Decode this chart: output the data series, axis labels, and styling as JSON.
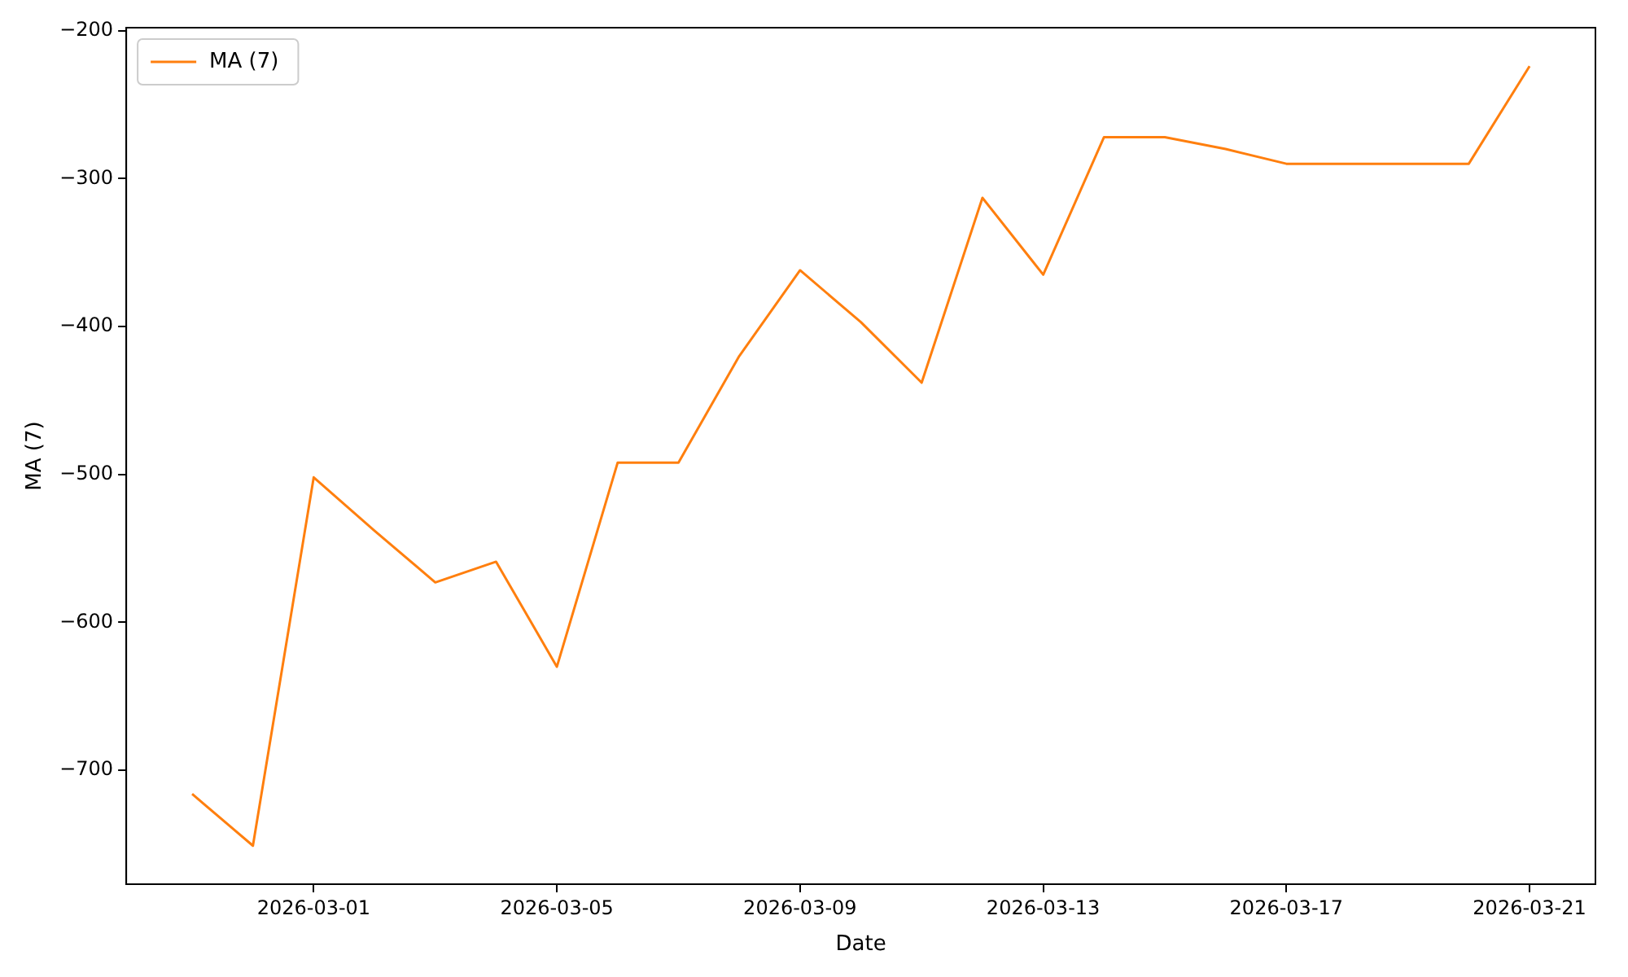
{
  "chart_data": {
    "type": "line",
    "xlabel": "Date",
    "ylabel": "MA (7)",
    "x": [
      "2026-02-27",
      "2026-02-28",
      "2026-03-01",
      "2026-03-02",
      "2026-03-03",
      "2026-03-04",
      "2026-03-05",
      "2026-03-06",
      "2026-03-07",
      "2026-03-08",
      "2026-03-09",
      "2026-03-10",
      "2026-03-11",
      "2026-03-12",
      "2026-03-13",
      "2026-03-14",
      "2026-03-15",
      "2026-03-16",
      "2026-03-17",
      "2026-03-18",
      "2026-03-19",
      "2026-03-20",
      "2026-03-21"
    ],
    "series": [
      {
        "name": "MA (7)",
        "color": "#ff7f0e",
        "values": [
          -716,
          -751,
          -502,
          -538,
          -573,
          -559,
          -630,
          -492,
          -492,
          -420,
          -362,
          -397,
          -438,
          -313,
          -365,
          -272,
          -272,
          -280,
          -290,
          -290,
          -290,
          -290,
          -224
        ]
      }
    ],
    "xlim": [
      "2026-02-25T22:00",
      "2026-03-22T02:00"
    ],
    "xticks": [
      "2026-03-01",
      "2026-03-05",
      "2026-03-09",
      "2026-03-13",
      "2026-03-17",
      "2026-03-21"
    ],
    "ylim": [
      -777,
      -198
    ],
    "yticks": [
      -700,
      -600,
      -500,
      -400,
      -300,
      -200
    ],
    "grid": false,
    "legend": "top left",
    "marker": "none",
    "line_style": "solid"
  }
}
